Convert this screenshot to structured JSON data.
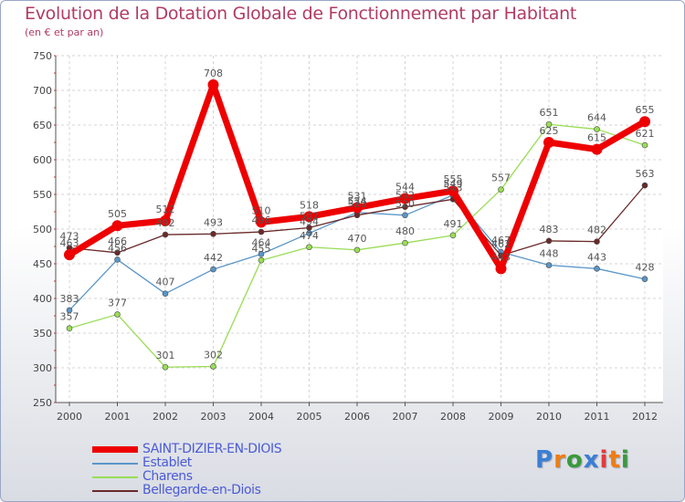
{
  "header": {
    "title": "Evolution de la Dotation Globale de Fonctionnement par Habitant",
    "subtitle": "(en € et par an)"
  },
  "logo": {
    "text": "Proxiti",
    "letter_colors": [
      "#3a7fd5",
      "#ef7d14",
      "#3a9a3a",
      "#3a7fd5",
      "#e23b3b",
      "#ef7d14",
      "#3a9a3a"
    ]
  },
  "chart_data": {
    "type": "line",
    "title": "Evolution de la Dotation Globale de Fonctionnement par Habitant",
    "subtitle": "(en € et par an)",
    "xlabel": "",
    "ylabel": "",
    "categories": [
      "2000",
      "2001",
      "2002",
      "2003",
      "2004",
      "2005",
      "2006",
      "2007",
      "2008",
      "2009",
      "2010",
      "2011",
      "2012"
    ],
    "ylim": [
      250,
      750
    ],
    "yticks": [
      250,
      300,
      350,
      400,
      450,
      500,
      550,
      600,
      650,
      700,
      750
    ],
    "grid": true,
    "legend_position": "bottom-left",
    "series": [
      {
        "name": "SAINT-DIZIER-EN-DIOIS",
        "color": "#ee0000",
        "values": [
          463,
          505,
          512,
          708,
          510,
          518,
          531,
          544,
          555,
          443,
          625,
          615,
          655
        ]
      },
      {
        "name": "Establet",
        "color": "#5a96c8",
        "values": [
          383,
          456,
          407,
          442,
          464,
          494,
          524,
          520,
          549,
          467,
          448,
          443,
          428
        ]
      },
      {
        "name": "Charens",
        "color": "#99dd55",
        "values": [
          357,
          377,
          301,
          302,
          455,
          474,
          470,
          480,
          491,
          557,
          651,
          644,
          621
        ]
      },
      {
        "name": "Bellegarde-en-Diois",
        "color": "#6a2a2a",
        "values": [
          473,
          466,
          492,
          493,
          496,
          502,
          520,
          532,
          543,
          462,
          483,
          482,
          563
        ]
      }
    ]
  }
}
